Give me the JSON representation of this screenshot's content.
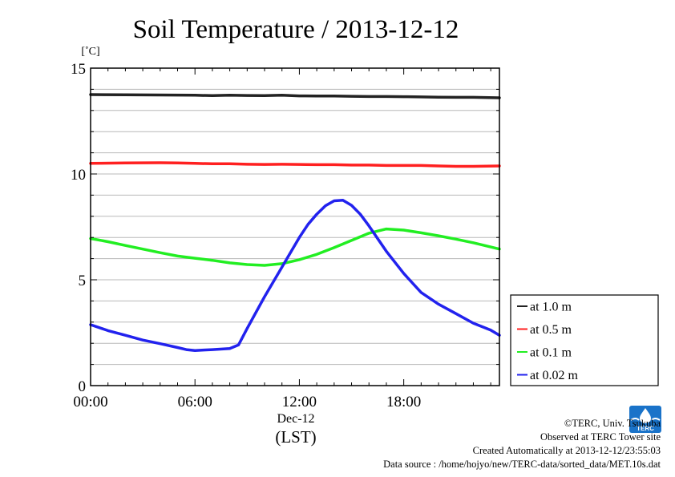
{
  "chart_data": {
    "type": "line",
    "title": "Soil Temperature / 2013-12-12",
    "ylabel": "[˚C]",
    "xlabel": "(LST)",
    "date_label": "Dec-12",
    "ylim": [
      0,
      15
    ],
    "xlim_hours": [
      0,
      23.5
    ],
    "y_ticks": [
      0,
      5,
      10,
      15
    ],
    "y_tick_labels": [
      "0",
      "5",
      "10",
      "15"
    ],
    "x_ticks_hours": [
      0,
      6,
      12,
      18
    ],
    "x_tick_labels": [
      "00:00",
      "06:00",
      "12:00",
      "18:00"
    ],
    "grid": true,
    "legend_position": "right",
    "series": [
      {
        "name": "at 1.0 m",
        "color": "#222222",
        "points": [
          [
            0,
            13.75
          ],
          [
            2,
            13.74
          ],
          [
            4,
            13.73
          ],
          [
            6,
            13.72
          ],
          [
            7,
            13.7
          ],
          [
            8,
            13.72
          ],
          [
            9,
            13.71
          ],
          [
            10,
            13.7
          ],
          [
            11,
            13.72
          ],
          [
            12,
            13.69
          ],
          [
            13,
            13.68
          ],
          [
            14,
            13.68
          ],
          [
            15,
            13.67
          ],
          [
            16,
            13.66
          ],
          [
            17,
            13.66
          ],
          [
            18,
            13.65
          ],
          [
            19,
            13.64
          ],
          [
            20,
            13.63
          ],
          [
            21,
            13.62
          ],
          [
            22,
            13.62
          ],
          [
            23.5,
            13.6
          ]
        ]
      },
      {
        "name": "at 0.5 m",
        "color": "#ff2020",
        "points": [
          [
            0,
            10.5
          ],
          [
            2,
            10.52
          ],
          [
            4,
            10.53
          ],
          [
            5,
            10.52
          ],
          [
            6,
            10.5
          ],
          [
            7,
            10.48
          ],
          [
            8,
            10.48
          ],
          [
            9,
            10.46
          ],
          [
            10,
            10.45
          ],
          [
            11,
            10.46
          ],
          [
            12,
            10.45
          ],
          [
            13,
            10.44
          ],
          [
            14,
            10.44
          ],
          [
            15,
            10.42
          ],
          [
            16,
            10.42
          ],
          [
            17,
            10.4
          ],
          [
            18,
            10.4
          ],
          [
            19,
            10.4
          ],
          [
            20,
            10.38
          ],
          [
            21,
            10.36
          ],
          [
            22,
            10.36
          ],
          [
            23.5,
            10.38
          ]
        ]
      },
      {
        "name": "at 0.1 m",
        "color": "#22ee22",
        "points": [
          [
            0,
            6.95
          ],
          [
            1,
            6.8
          ],
          [
            2,
            6.62
          ],
          [
            3,
            6.45
          ],
          [
            4,
            6.28
          ],
          [
            5,
            6.12
          ],
          [
            6,
            6.02
          ],
          [
            7,
            5.92
          ],
          [
            8,
            5.8
          ],
          [
            9,
            5.72
          ],
          [
            10,
            5.68
          ],
          [
            11,
            5.76
          ],
          [
            12,
            5.95
          ],
          [
            13,
            6.2
          ],
          [
            14,
            6.52
          ],
          [
            15,
            6.86
          ],
          [
            16,
            7.2
          ],
          [
            17,
            7.4
          ],
          [
            18,
            7.35
          ],
          [
            19,
            7.22
          ],
          [
            20,
            7.08
          ],
          [
            21,
            6.92
          ],
          [
            22,
            6.75
          ],
          [
            23.5,
            6.45
          ]
        ]
      },
      {
        "name": "at 0.02 m",
        "color": "#2222ee",
        "points": [
          [
            0,
            2.88
          ],
          [
            1,
            2.6
          ],
          [
            2,
            2.38
          ],
          [
            3,
            2.15
          ],
          [
            4,
            1.98
          ],
          [
            5,
            1.8
          ],
          [
            5.5,
            1.7
          ],
          [
            6,
            1.66
          ],
          [
            6.5,
            1.68
          ],
          [
            7,
            1.7
          ],
          [
            8,
            1.75
          ],
          [
            8.5,
            1.92
          ],
          [
            9,
            2.7
          ],
          [
            10,
            4.2
          ],
          [
            11,
            5.6
          ],
          [
            12,
            7.0
          ],
          [
            12.5,
            7.62
          ],
          [
            13,
            8.1
          ],
          [
            13.5,
            8.5
          ],
          [
            14,
            8.73
          ],
          [
            14.5,
            8.76
          ],
          [
            15,
            8.52
          ],
          [
            15.5,
            8.1
          ],
          [
            16,
            7.55
          ],
          [
            17,
            6.35
          ],
          [
            18,
            5.3
          ],
          [
            19,
            4.4
          ],
          [
            20,
            3.85
          ],
          [
            21,
            3.4
          ],
          [
            22,
            2.95
          ],
          [
            23,
            2.62
          ],
          [
            23.5,
            2.38
          ]
        ]
      }
    ]
  },
  "footer": {
    "copyright": "©TERC, Univ. Tsukuba",
    "observed": "Observed at TERC Tower site",
    "created": "Created Automatically at 2013-12-12/23:55:03",
    "source": "Data source : /home/hojyo/new/TERC-data/sorted_data/MET.10s.dat"
  },
  "logo": {
    "text": "TERC",
    "color": "#1a73c9"
  }
}
